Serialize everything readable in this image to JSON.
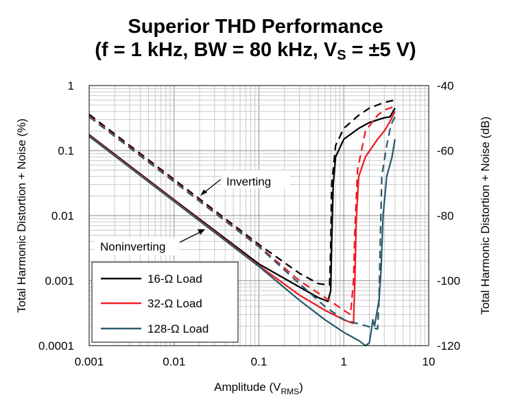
{
  "title": {
    "line1": "Superior THD Performance",
    "line2_prefix": "(f = 1 kHz, BW = 80 kHz, V",
    "line2_sub": "S",
    "line2_suffix": " = ±5 V)"
  },
  "chart_data": {
    "type": "line",
    "x_scale": "log",
    "y_scale": "log",
    "xlim": [
      0.001,
      10
    ],
    "ylim": [
      0.0001,
      1
    ],
    "y2lim": [
      -120,
      -40
    ],
    "xlabel_prefix": "Amplitude (V",
    "xlabel_sub": "RMS",
    "xlabel_suffix": ")",
    "ylabel": "Total Harmonic Distortion + Noise (%)",
    "y2label": "Total Harmonic Distortion + Noise (dB)",
    "x_ticks": [
      "0.001",
      "0.01",
      "0.1",
      "1",
      "10"
    ],
    "y_ticks": [
      "0.0001",
      "0.001",
      "0.01",
      "0.1",
      "1"
    ],
    "y2_ticks": [
      "-120",
      "-100",
      "-80",
      "-60",
      "-40"
    ],
    "grid": true,
    "legend_position": "bottom-left",
    "colors": {
      "16": "#000000",
      "32": "#ee1c25",
      "128": "#2b5b6e"
    },
    "legend": [
      {
        "label": "16-Ω Load",
        "color": "#000000"
      },
      {
        "label": "32-Ω Load",
        "color": "#ee1c25"
      },
      {
        "label": "128-Ω Load",
        "color": "#2b5b6e"
      }
    ],
    "annotations": [
      {
        "text": "Inverting"
      },
      {
        "text": "Noninverting"
      }
    ],
    "series": [
      {
        "load": "16",
        "mode": "Noninverting",
        "style": "solid",
        "color": "#000000",
        "points": [
          [
            0.001,
            0.175
          ],
          [
            0.01,
            0.0175
          ],
          [
            0.1,
            0.0018
          ],
          [
            0.3,
            0.0008
          ],
          [
            0.5,
            0.00055
          ],
          [
            0.65,
            0.00048
          ],
          [
            0.7,
            0.0007
          ],
          [
            0.72,
            0.004
          ],
          [
            0.75,
            0.03
          ],
          [
            0.8,
            0.08
          ],
          [
            1.0,
            0.15
          ],
          [
            1.5,
            0.22
          ],
          [
            2.0,
            0.27
          ],
          [
            3.0,
            0.32
          ],
          [
            3.5,
            0.33
          ],
          [
            4.0,
            0.45
          ]
        ]
      },
      {
        "load": "32",
        "mode": "Noninverting",
        "style": "solid",
        "color": "#ee1c25",
        "points": [
          [
            0.001,
            0.17
          ],
          [
            0.01,
            0.017
          ],
          [
            0.1,
            0.0017
          ],
          [
            0.3,
            0.0006
          ],
          [
            0.6,
            0.00035
          ],
          [
            1.0,
            0.00025
          ],
          [
            1.3,
            0.00022
          ],
          [
            1.35,
            0.001
          ],
          [
            1.4,
            0.008
          ],
          [
            1.5,
            0.04
          ],
          [
            1.8,
            0.08
          ],
          [
            2.5,
            0.15
          ],
          [
            3.0,
            0.2
          ],
          [
            3.5,
            0.28
          ],
          [
            4.0,
            0.4
          ]
        ]
      },
      {
        "load": "128",
        "mode": "Noninverting",
        "style": "solid",
        "color": "#2b5b6e",
        "points": [
          [
            0.001,
            0.165
          ],
          [
            0.01,
            0.0165
          ],
          [
            0.1,
            0.00165
          ],
          [
            0.3,
            0.0005
          ],
          [
            0.6,
            0.00025
          ],
          [
            1.0,
            0.00016
          ],
          [
            1.5,
            0.00012
          ],
          [
            1.8,
            0.0001
          ],
          [
            2.0,
            0.00011
          ],
          [
            2.2,
            0.00025
          ],
          [
            2.3,
            0.0002
          ],
          [
            2.6,
            0.0005
          ],
          [
            2.75,
            0.0015
          ],
          [
            2.9,
            0.01
          ],
          [
            3.2,
            0.04
          ],
          [
            3.7,
            0.08
          ],
          [
            4.0,
            0.15
          ]
        ]
      },
      {
        "load": "16",
        "mode": "Inverting",
        "style": "dashed",
        "color": "#000000",
        "points": [
          [
            0.001,
            0.36
          ],
          [
            0.01,
            0.036
          ],
          [
            0.1,
            0.0036
          ],
          [
            0.3,
            0.0013
          ],
          [
            0.5,
            0.0009
          ],
          [
            0.68,
            0.00085
          ],
          [
            0.7,
            0.003
          ],
          [
            0.72,
            0.03
          ],
          [
            0.8,
            0.12
          ],
          [
            1.0,
            0.22
          ],
          [
            1.5,
            0.35
          ],
          [
            2.0,
            0.45
          ],
          [
            3.0,
            0.55
          ],
          [
            4.0,
            0.6
          ]
        ]
      },
      {
        "load": "32",
        "mode": "Inverting",
        "style": "dashed",
        "color": "#ee1c25",
        "points": [
          [
            0.001,
            0.34
          ],
          [
            0.01,
            0.034
          ],
          [
            0.1,
            0.0034
          ],
          [
            0.3,
            0.001
          ],
          [
            0.6,
            0.00055
          ],
          [
            1.0,
            0.00035
          ],
          [
            1.2,
            0.0003
          ],
          [
            1.3,
            0.001
          ],
          [
            1.35,
            0.006
          ],
          [
            1.45,
            0.05
          ],
          [
            1.8,
            0.2
          ],
          [
            2.5,
            0.35
          ],
          [
            3.0,
            0.42
          ],
          [
            4.0,
            0.48
          ]
        ]
      },
      {
        "load": "128",
        "mode": "Inverting",
        "style": "dashed",
        "color": "#2b5b6e",
        "points": [
          [
            0.001,
            0.33
          ],
          [
            0.01,
            0.033
          ],
          [
            0.1,
            0.0033
          ],
          [
            0.3,
            0.0009
          ],
          [
            0.6,
            0.0004
          ],
          [
            1.0,
            0.00025
          ],
          [
            2.5,
            0.00018
          ],
          [
            2.6,
            0.0005
          ],
          [
            2.7,
            0.005
          ],
          [
            2.8,
            0.04
          ],
          [
            3.2,
            0.12
          ],
          [
            3.6,
            0.25
          ],
          [
            4.0,
            0.33
          ]
        ]
      }
    ]
  }
}
